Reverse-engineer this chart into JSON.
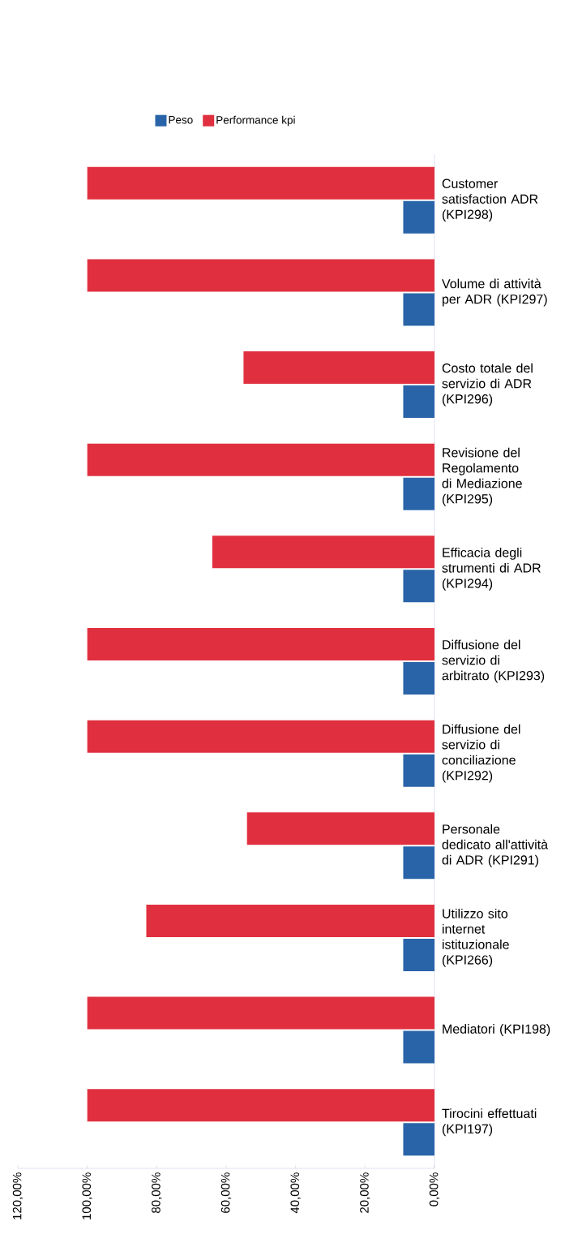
{
  "chart_data": {
    "type": "bar",
    "orientation": "horizontal",
    "categories": [
      "Customer satisfaction ADR (KPI298)",
      "Volume di attività per ADR (KPI297)",
      "Costo totale del servizio di ADR (KPI296)",
      "Revisione del Regolamento di Mediazione (KPI295)",
      "Efficacia degli strumenti di ADR (KPI294)",
      "Diffusione del servizio di arbitrato (KPI293)",
      "Diffusione del servizio di conciliazione (KPI292)",
      "Personale dedicato all'attività di ADR (KPI291)",
      "Utilizzo sito internet istituzionale (KPI266)",
      "Mediatori (KPI198)",
      "Tirocini effettuati (KPI197)"
    ],
    "series": [
      {
        "name": "Peso",
        "color": "#2a64a8",
        "values": [
          9,
          9,
          9,
          9,
          9,
          9,
          9,
          9,
          9,
          9,
          9
        ]
      },
      {
        "name": "Performance kpi",
        "color": "#e0303f",
        "values": [
          100,
          100,
          55,
          100,
          64,
          100,
          100,
          54,
          83,
          100,
          100
        ]
      }
    ],
    "xlim": [
      120,
      0
    ],
    "xticks": [
      {
        "value": 0,
        "label": "0,00%"
      },
      {
        "value": 20,
        "label": "20,00%"
      },
      {
        "value": 40,
        "label": "40,00%"
      },
      {
        "value": 60,
        "label": "60,00%"
      },
      {
        "value": 80,
        "label": "80,00%"
      },
      {
        "value": 100,
        "label": "100,00%"
      },
      {
        "value": 120,
        "label": "120,00%"
      }
    ],
    "legend": "top"
  }
}
